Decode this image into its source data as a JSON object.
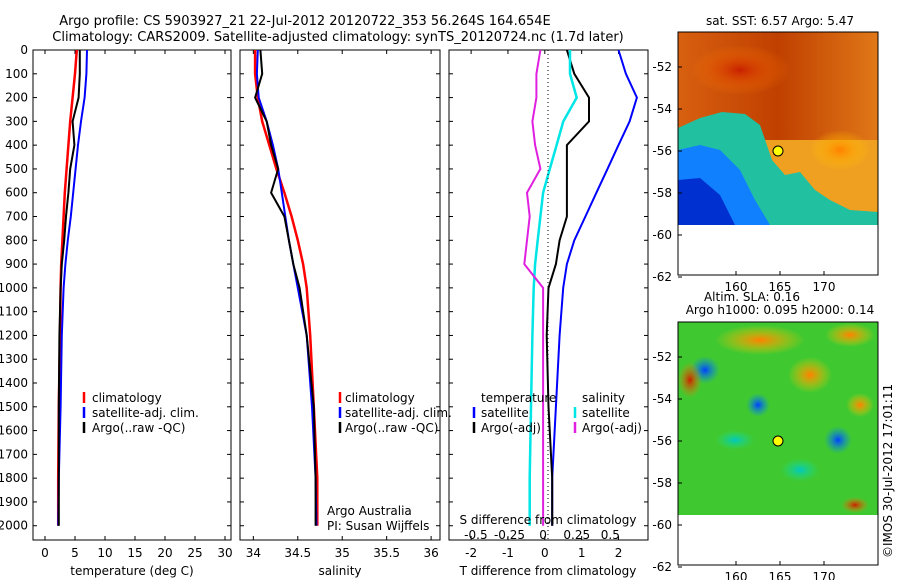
{
  "title_line1": "Argo profile: CS 5903927_21 22-Jul-2012 20120722_353 56.264S 164.654E",
  "title_line2": "Climatology: CARS2009. Satellite-adjusted climatology: synTS_20120724.nc (1.7d later)",
  "colors": {
    "clim": "#ff0000",
    "sat": "#0000ff",
    "argo": "#000000",
    "cyan": "#00e5e5",
    "magenta": "#e020e0"
  },
  "depth_ticks": [
    0,
    100,
    200,
    300,
    400,
    500,
    600,
    700,
    800,
    900,
    1000,
    1100,
    1200,
    1300,
    1400,
    1500,
    1600,
    1700,
    1800,
    1900,
    2000
  ],
  "temp_panel": {
    "xlabel": "temperature (deg C)",
    "xticks": [
      0,
      5,
      10,
      15,
      20,
      25,
      30
    ],
    "legend": [
      "climatology",
      "satellite-adj. clim.",
      "Argo(..raw -QC)"
    ]
  },
  "sal_panel": {
    "xlabel": "salinity",
    "xticks": [
      "34",
      "34.5",
      "35",
      "35.5",
      "36"
    ],
    "legend": [
      "climatology",
      "satellite-adj. clim.",
      "Argo(..raw -QC)"
    ],
    "note1": "Argo Australia",
    "note2": "PI: Susan Wijffels"
  },
  "diff_panel": {
    "xlabel": "T difference from climatology",
    "xlabel_top": "S difference from climatology",
    "xticks": [
      "-2",
      "-1",
      "0",
      "1",
      "2"
    ],
    "s_ticks": [
      "-0.5",
      "-0.25",
      "0",
      "0.25",
      "0.5"
    ],
    "leg_t_title": "temperature",
    "leg_s_title": "salinity",
    "leg_t": [
      "satellite",
      "Argo(-adj)"
    ],
    "leg_s": [
      "satellite",
      "Argo(-adj)"
    ]
  },
  "map_sst": {
    "title": "sat. SST: 6.57 Argo: 5.47",
    "yticks": [
      "-52",
      "-54",
      "-56",
      "-58",
      "-60",
      "-62"
    ],
    "xticks": [
      "160",
      "165",
      "170"
    ]
  },
  "map_sla": {
    "title1": "Altim. SLA: 0.16",
    "title2": "Argo h1000: 0.095 h2000: 0.14",
    "yticks": [
      "-52",
      "-54",
      "-56",
      "-58",
      "-60",
      "-62"
    ],
    "xticks": [
      "160",
      "165",
      "170"
    ]
  },
  "stamp": "©IMOS 30-Jul-2012 17:01:11",
  "chart_data": [
    {
      "type": "line",
      "title": "",
      "xlabel": "temperature (deg C)",
      "ylabel": "",
      "xlim": [
        -2,
        31
      ],
      "ylim": [
        2060,
        0
      ],
      "series": [
        {
          "name": "climatology",
          "x": [
            5.3,
            5.0,
            4.6,
            4.2,
            3.9,
            3.6,
            3.3,
            3.1,
            2.9,
            2.7,
            2.6,
            2.5,
            2.3,
            2.2,
            2.2
          ],
          "y": [
            0,
            100,
            200,
            300,
            400,
            500,
            600,
            700,
            800,
            900,
            1000,
            1200,
            1500,
            1800,
            2000
          ]
        },
        {
          "name": "satellite-adj. clim.",
          "x": [
            7.0,
            6.9,
            6.6,
            6.0,
            5.5,
            5.1,
            4.7,
            4.3,
            3.8,
            3.4,
            3.1,
            2.8,
            2.6,
            2.3,
            2.2
          ],
          "y": [
            0,
            100,
            200,
            300,
            400,
            500,
            600,
            700,
            800,
            900,
            1000,
            1200,
            1500,
            1800,
            2000
          ]
        },
        {
          "name": "Argo(..raw -QC)",
          "x": [
            5.8,
            5.8,
            5.6,
            4.6,
            4.9,
            4.2,
            3.9,
            3.5,
            3.2,
            2.8,
            2.6,
            2.4,
            2.3,
            2.3,
            2.3
          ],
          "y": [
            0,
            100,
            200,
            300,
            400,
            500,
            600,
            700,
            800,
            900,
            1000,
            1200,
            1500,
            1800,
            2000
          ]
        }
      ]
    },
    {
      "type": "line",
      "title": "",
      "xlabel": "salinity",
      "ylabel": "",
      "xlim": [
        33.85,
        36.1
      ],
      "ylim": [
        2060,
        0
      ],
      "series": [
        {
          "name": "climatology",
          "x": [
            34.02,
            34.02,
            34.05,
            34.1,
            34.18,
            34.26,
            34.35,
            34.43,
            34.5,
            34.56,
            34.6,
            34.64,
            34.68,
            34.72,
            34.72
          ],
          "y": [
            0,
            100,
            200,
            300,
            400,
            500,
            600,
            700,
            800,
            900,
            1000,
            1200,
            1500,
            1800,
            2000
          ]
        },
        {
          "name": "satellite-adj. clim.",
          "x": [
            34.05,
            34.04,
            34.06,
            34.15,
            34.22,
            34.28,
            34.32,
            34.36,
            34.4,
            34.45,
            34.5,
            34.6,
            34.66,
            34.7,
            34.71
          ],
          "y": [
            0,
            100,
            200,
            300,
            400,
            500,
            600,
            700,
            800,
            900,
            1000,
            1200,
            1500,
            1800,
            2000
          ]
        },
        {
          "name": "Argo(..raw -QC)",
          "x": [
            34.08,
            34.1,
            34.02,
            34.15,
            34.2,
            34.28,
            34.2,
            34.35,
            34.4,
            34.45,
            34.52,
            34.6,
            34.68,
            34.7,
            34.7
          ],
          "y": [
            0,
            100,
            200,
            300,
            400,
            500,
            600,
            700,
            800,
            900,
            1000,
            1200,
            1500,
            1800,
            2000
          ]
        }
      ]
    },
    {
      "type": "line",
      "title": "",
      "xlabel": "T difference from climatology",
      "ylabel": "",
      "xlim": [
        -2.6,
        2.8
      ],
      "ylim": [
        2060,
        0
      ],
      "series": [
        {
          "name": "satellite",
          "x": [
            2.0,
            2.2,
            2.5,
            2.3,
            2.0,
            1.7,
            1.4,
            1.1,
            0.8,
            0.6,
            0.5,
            0.4,
            0.3,
            0.2,
            0.2
          ],
          "y": [
            0,
            100,
            200,
            300,
            400,
            500,
            600,
            700,
            800,
            900,
            1000,
            1200,
            1500,
            1800,
            2000
          ]
        },
        {
          "name": "Argo(-adj)",
          "x": [
            0.6,
            0.8,
            1.2,
            1.2,
            0.6,
            0.6,
            0.6,
            0.6,
            0.4,
            0.3,
            0.1,
            0.05,
            0.1,
            0.2,
            0.2
          ],
          "y": [
            0,
            100,
            200,
            300,
            400,
            500,
            600,
            700,
            800,
            900,
            1000,
            1200,
            1500,
            1800,
            2000
          ]
        }
      ]
    },
    {
      "type": "line",
      "title": "",
      "xlabel": "S difference from climatology",
      "ylabel": "",
      "xlim": [
        -0.7,
        0.78
      ],
      "ylim": [
        2060,
        0
      ],
      "series": [
        {
          "name": "satellite",
          "x": [
            0.2,
            0.2,
            0.25,
            0.15,
            0.1,
            0.05,
            0,
            -0.02,
            -0.04,
            -0.06,
            -0.07,
            -0.08,
            -0.09,
            -0.1,
            -0.1
          ],
          "y": [
            0,
            100,
            200,
            300,
            400,
            500,
            600,
            700,
            800,
            900,
            1000,
            1200,
            1500,
            1800,
            2000
          ]
        },
        {
          "name": "Argo(-adj)",
          "x": [
            -0.02,
            -0.05,
            -0.05,
            -0.08,
            -0.06,
            -0.02,
            -0.12,
            -0.1,
            -0.12,
            -0.14,
            0,
            0,
            0,
            0,
            0
          ],
          "y": [
            0,
            100,
            200,
            300,
            400,
            500,
            600,
            700,
            800,
            900,
            1000,
            1200,
            1500,
            1800,
            2000
          ]
        }
      ]
    }
  ]
}
